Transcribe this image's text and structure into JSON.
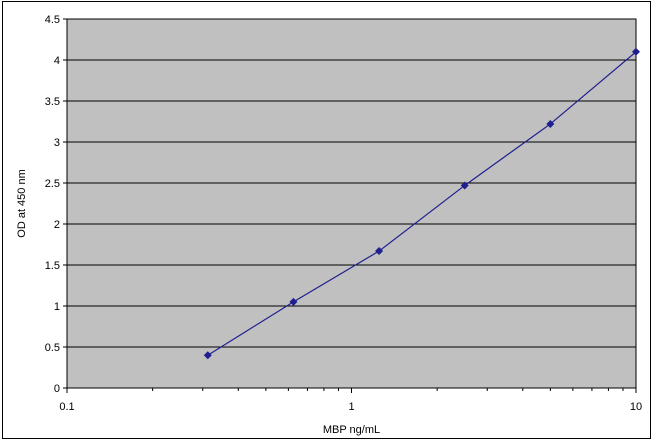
{
  "chart_data": {
    "type": "scatter",
    "title": "",
    "xlabel": "MBP ng/mL",
    "ylabel": "OD at 450 nm",
    "x_scale": "log",
    "xlim": [
      0.1,
      10
    ],
    "ylim": [
      0,
      4.5
    ],
    "x_ticks": [
      "0.1",
      "1",
      "10"
    ],
    "y_ticks": [
      "0",
      "0.5",
      "1",
      "1.5",
      "2",
      "2.5",
      "3",
      "3.5",
      "4",
      "4.5"
    ],
    "grid": "horizontal",
    "plot_background": "#c0c0c0",
    "series": [
      {
        "color": "#1f1f8f",
        "marker": "diamond",
        "line": true,
        "x": [
          0.3125,
          0.625,
          1.25,
          2.5,
          5,
          10
        ],
        "y": [
          0.4,
          1.05,
          1.67,
          2.47,
          3.22,
          4.1
        ]
      }
    ]
  }
}
